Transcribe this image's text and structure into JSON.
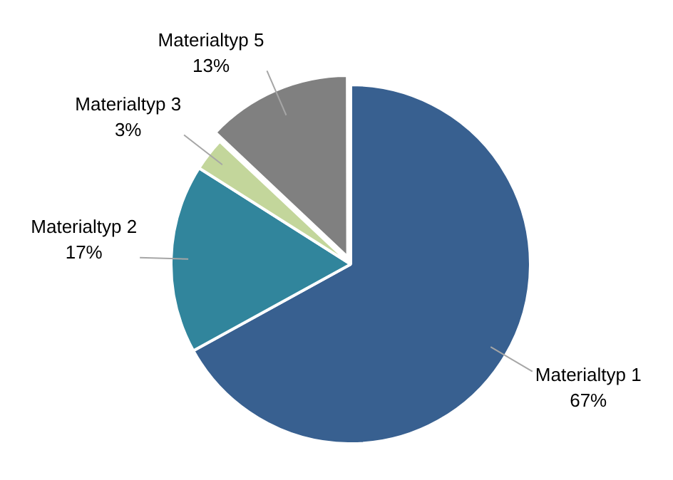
{
  "chart_data": {
    "type": "pie",
    "categories": [
      "Materialtyp 1",
      "Materialtyp 2",
      "Materialtyp 3",
      "Materialtyp 5"
    ],
    "values": [
      67,
      17,
      3,
      13
    ],
    "value_labels": [
      "67%",
      "17%",
      "3%",
      "13%"
    ],
    "colors": [
      "#386090",
      "#31859c",
      "#c3d69b",
      "#808080"
    ],
    "legend": false
  }
}
